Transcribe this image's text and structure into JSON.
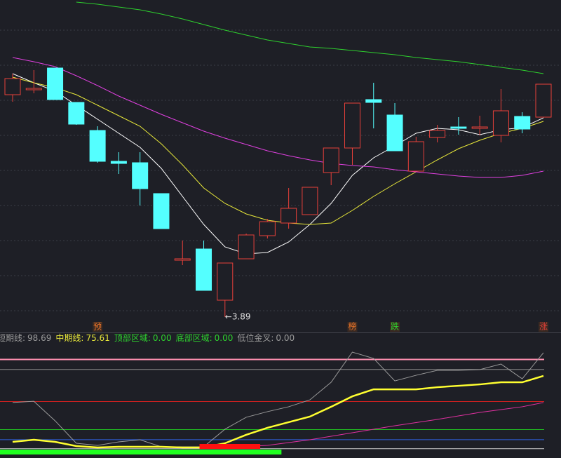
{
  "chart_data": [
    {
      "type": "candlestick",
      "open": [
        4.524,
        4.538,
        4.6,
        4.502,
        4.422,
        4.334,
        4.33,
        4.242,
        4.052,
        4.084,
        3.938,
        4.056,
        4.122,
        4.158,
        4.182,
        4.302,
        4.372,
        4.51,
        4.466,
        4.306,
        4.402,
        4.432,
        4.428,
        4.408,
        4.462,
        4.46
      ],
      "close": [
        4.57,
        4.542,
        4.51,
        4.44,
        4.334,
        4.328,
        4.256,
        4.142,
        4.056,
        3.966,
        4.044,
        4.124,
        4.162,
        4.2,
        4.26,
        4.372,
        4.5,
        4.502,
        4.364,
        4.39,
        4.422,
        4.428,
        4.432,
        4.478,
        4.426,
        4.554
      ],
      "high": [
        4.584,
        4.594,
        4.6,
        4.502,
        4.434,
        4.36,
        4.36,
        4.242,
        4.108,
        4.108,
        4.044,
        4.128,
        4.17,
        4.258,
        4.26,
        4.372,
        4.5,
        4.558,
        4.5,
        4.404,
        4.438,
        4.46,
        4.464,
        4.54,
        4.474,
        4.554
      ],
      "low": [
        4.504,
        4.528,
        4.51,
        4.438,
        4.33,
        4.298,
        4.208,
        4.142,
        4.038,
        3.966,
        3.89,
        4.056,
        4.114,
        4.142,
        4.182,
        4.266,
        4.324,
        4.428,
        4.364,
        4.306,
        4.388,
        4.41,
        4.408,
        4.388,
        4.414,
        4.46
      ],
      "up_color": "#e8403a",
      "down_color": "#54ffff",
      "series": [
        {
          "color": "#ffffff",
          "values": [
            4.584,
            4.558,
            4.534,
            4.494,
            4.454,
            4.414,
            4.374,
            4.314,
            4.234,
            4.154,
            4.09,
            4.07,
            4.074,
            4.104,
            4.154,
            4.214,
            4.294,
            4.344,
            4.378,
            4.414,
            4.428,
            4.424,
            4.41,
            4.424,
            4.43,
            4.458
          ]
        },
        {
          "color": "#e8e83a",
          "values": [
            4.574,
            4.558,
            4.544,
            4.524,
            4.494,
            4.464,
            4.434,
            4.384,
            4.324,
            4.258,
            4.214,
            4.184,
            4.166,
            4.158,
            4.154,
            4.158,
            4.194,
            4.234,
            4.27,
            4.304,
            4.338,
            4.37,
            4.394,
            4.414,
            4.428,
            4.448
          ]
        },
        {
          "color": "#e040e0",
          "values": [
            4.63,
            4.618,
            4.604,
            4.578,
            4.55,
            4.52,
            4.494,
            4.468,
            4.444,
            4.42,
            4.4,
            4.382,
            4.364,
            4.35,
            4.338,
            4.328,
            4.322,
            4.318,
            4.31,
            4.304,
            4.298,
            4.292,
            4.288,
            4.288,
            4.294,
            4.306
          ]
        },
        {
          "color": "#2ed02e",
          "values": [
            null,
            null,
            null,
            4.788,
            4.782,
            4.774,
            4.766,
            4.754,
            4.74,
            4.724,
            4.708,
            4.694,
            4.68,
            4.67,
            4.66,
            4.656,
            4.65,
            4.644,
            4.638,
            4.63,
            4.624,
            4.618,
            4.61,
            4.602,
            4.594,
            4.584
          ]
        }
      ],
      "ylim": [
        3.874,
        4.794
      ],
      "gridlines": [
        4.708,
        4.608,
        4.508,
        4.408,
        4.308,
        4.208,
        4.108,
        4.008,
        3.908
      ],
      "annotation": {
        "text": "←3.89",
        "index": 10
      },
      "signals": [
        {
          "text": "预",
          "index": 4,
          "color": "#e8732a"
        },
        {
          "text": "榜",
          "index": 16,
          "color": "#e8732a"
        },
        {
          "text": "跌",
          "index": 18,
          "color": "#2ed02e"
        },
        {
          "text": "涨",
          "index": 25,
          "color": "#e8403a"
        }
      ]
    },
    {
      "type": "indicator",
      "legend": [
        {
          "label": "短期线:",
          "value": "98.69",
          "color": "#9a9a9a"
        },
        {
          "label": "中期线:",
          "value": "75.61",
          "color": "#e8e83a"
        },
        {
          "label": "顶部区域:",
          "value": "0.00",
          "color": "#2ed02e"
        },
        {
          "label": "底部区域:",
          "value": "0.00",
          "color": "#2ed02e"
        },
        {
          "label": "低位金叉:",
          "value": "0.00",
          "color": "#9a9a9a"
        }
      ],
      "ylim": [
        -6.3,
        118.2
      ],
      "levels": [
        {
          "value": 92,
          "color": "#ff8fb0"
        },
        {
          "value": 82,
          "color": "#8a8a8a"
        },
        {
          "value": 50,
          "color": "#d02020"
        },
        {
          "value": 22,
          "color": "#20c020"
        },
        {
          "value": 12,
          "color": "#3060e0"
        },
        {
          "value": 3,
          "color": "#d0d0d0"
        }
      ],
      "series": [
        {
          "color": "#9a9a9a",
          "values": [
            49,
            50.3,
            30.8,
            8.4,
            6.3,
            9.8,
            11.9,
            4.9,
            4.9,
            4.9,
            22.4,
            34.3,
            39.9,
            44.8,
            51.7,
            69.2,
            99.3,
            93,
            70.6,
            76.2,
            81.1,
            81.1,
            81.8,
            87.4,
            72.7,
            98.69
          ]
        },
        {
          "color": "#ffff30",
          "values": [
            9.8,
            11.9,
            9.8,
            5.6,
            4.2,
            4.9,
            4.9,
            4.9,
            4.2,
            4.2,
            8.4,
            16.8,
            23.8,
            29.4,
            35,
            44.8,
            55.2,
            62.2,
            62.2,
            62.2,
            64.3,
            65.7,
            67.1,
            69.2,
            69.2,
            75.61
          ]
        },
        {
          "color": "#e030a0",
          "values": [
            null,
            null,
            null,
            null,
            null,
            null,
            null,
            null,
            null,
            null,
            4.2,
            5.2,
            6.3,
            9.1,
            11.9,
            15.4,
            18.9,
            22.4,
            25.9,
            29,
            32.2,
            35.7,
            39.2,
            42,
            44.8,
            49
          ]
        }
      ],
      "bands": [
        {
          "color": "#20ff20",
          "from": 0,
          "to": 12
        },
        {
          "color": "#ff1010",
          "from": 9,
          "to": 11
        }
      ]
    }
  ]
}
